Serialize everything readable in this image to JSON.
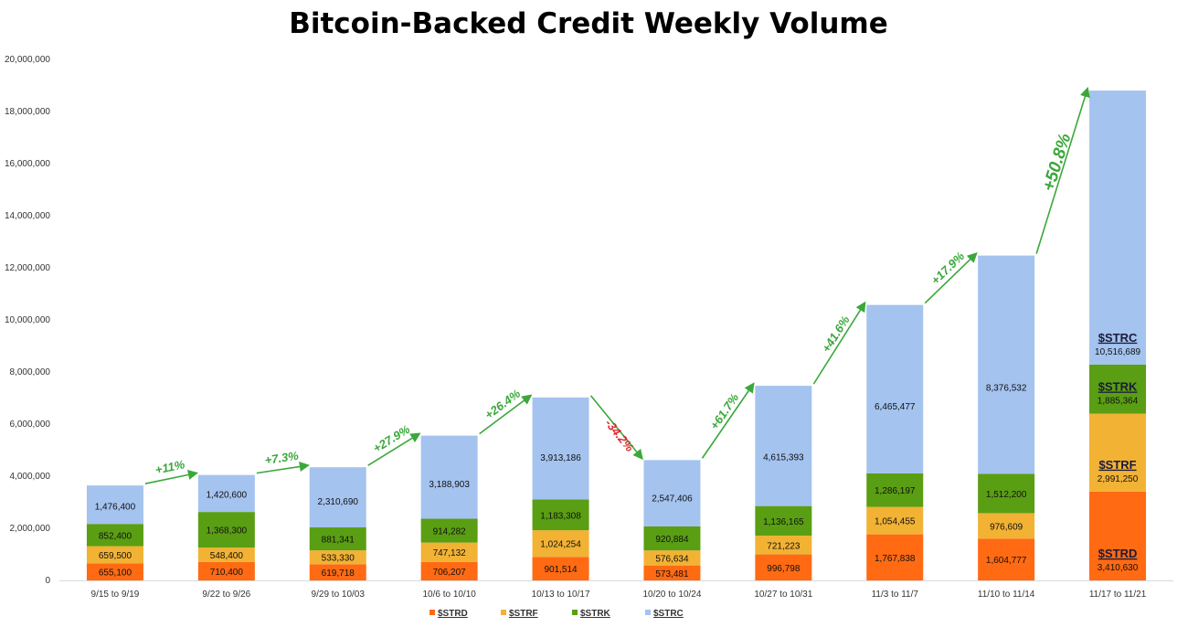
{
  "chart_data": {
    "type": "bar",
    "stacked": true,
    "title": "Bitcoin-Backed Credit Weekly Volume",
    "xlabel": "",
    "ylabel": "",
    "ylim": [
      0,
      20000000
    ],
    "yticks": [
      "0",
      "2,000,000",
      "4,000,000",
      "6,000,000",
      "8,000,000",
      "10,000,000",
      "12,000,000",
      "14,000,000",
      "16,000,000",
      "18,000,000",
      "20,000,000"
    ],
    "categories": [
      "9/15 to 9/19",
      "9/22 to 9/26",
      "9/29 to 10/03",
      "10/6 to 10/10",
      "10/13 to 10/17",
      "10/20 to 10/24",
      "10/27 to 10/31",
      "11/3 to 11/7",
      "11/10 to 11/14",
      "11/17 to 11/21"
    ],
    "series": [
      {
        "name": "$STRD",
        "color": "#ff6a13",
        "values": [
          655100,
          710400,
          619718,
          706207,
          901514,
          573481,
          996798,
          1767838,
          1604777,
          3410630
        ],
        "labels": [
          "655,100",
          "710,400",
          "619,718",
          "706,207",
          "901,514",
          "573,481",
          "996,798",
          "1,767,838",
          "1,604,777",
          "3,410,630"
        ]
      },
      {
        "name": "$STRF",
        "color": "#f2b234",
        "values": [
          659500,
          548400,
          533330,
          747132,
          1024254,
          576634,
          721223,
          1054455,
          976609,
          2991250
        ],
        "labels": [
          "659,500",
          "548,400",
          "533,330",
          "747,132",
          "1,024,254",
          "576,634",
          "721,223",
          "1,054,455",
          "976,609",
          "2,991,250"
        ]
      },
      {
        "name": "$STRK",
        "color": "#5a9e13",
        "values": [
          852400,
          1368300,
          881341,
          914282,
          1183308,
          920884,
          1136165,
          1286197,
          1512200,
          1885364
        ],
        "labels": [
          "852,400",
          "1,368,300",
          "881,341",
          "914,282",
          "1,183,308",
          "920,884",
          "1,136,165",
          "1,286,197",
          "1,512,200",
          "1,885,364"
        ]
      },
      {
        "name": "$STRC",
        "color": "#a4c3ef",
        "values": [
          1476400,
          1420600,
          2310690,
          3188903,
          3913186,
          2547406,
          4615393,
          6465477,
          8376532,
          10516689
        ],
        "labels": [
          "1,476,400",
          "1,420,600",
          "2,310,690",
          "3,188,903",
          "3,913,186",
          "2,547,406",
          "4,615,393",
          "6,465,477",
          "8,376,532",
          "10,516,689"
        ]
      }
    ],
    "growth_labels": [
      "+11%",
      "+7.3%",
      "+27.9%",
      "+26.4%",
      "-34.2%",
      "+61.7%",
      "+41.6%",
      "+17.9%",
      "+50.8%"
    ],
    "growth_colors": {
      "up": "#3aa83a",
      "down": "#e0252b"
    },
    "legend": {
      "position": "bottom-center",
      "items": [
        "$STRD",
        "$STRF",
        "$STRK",
        "$STRC"
      ]
    },
    "inline_series_tags": [
      "$STRD",
      "$STRF",
      "$STRK",
      "$STRC"
    ],
    "grid": false
  }
}
